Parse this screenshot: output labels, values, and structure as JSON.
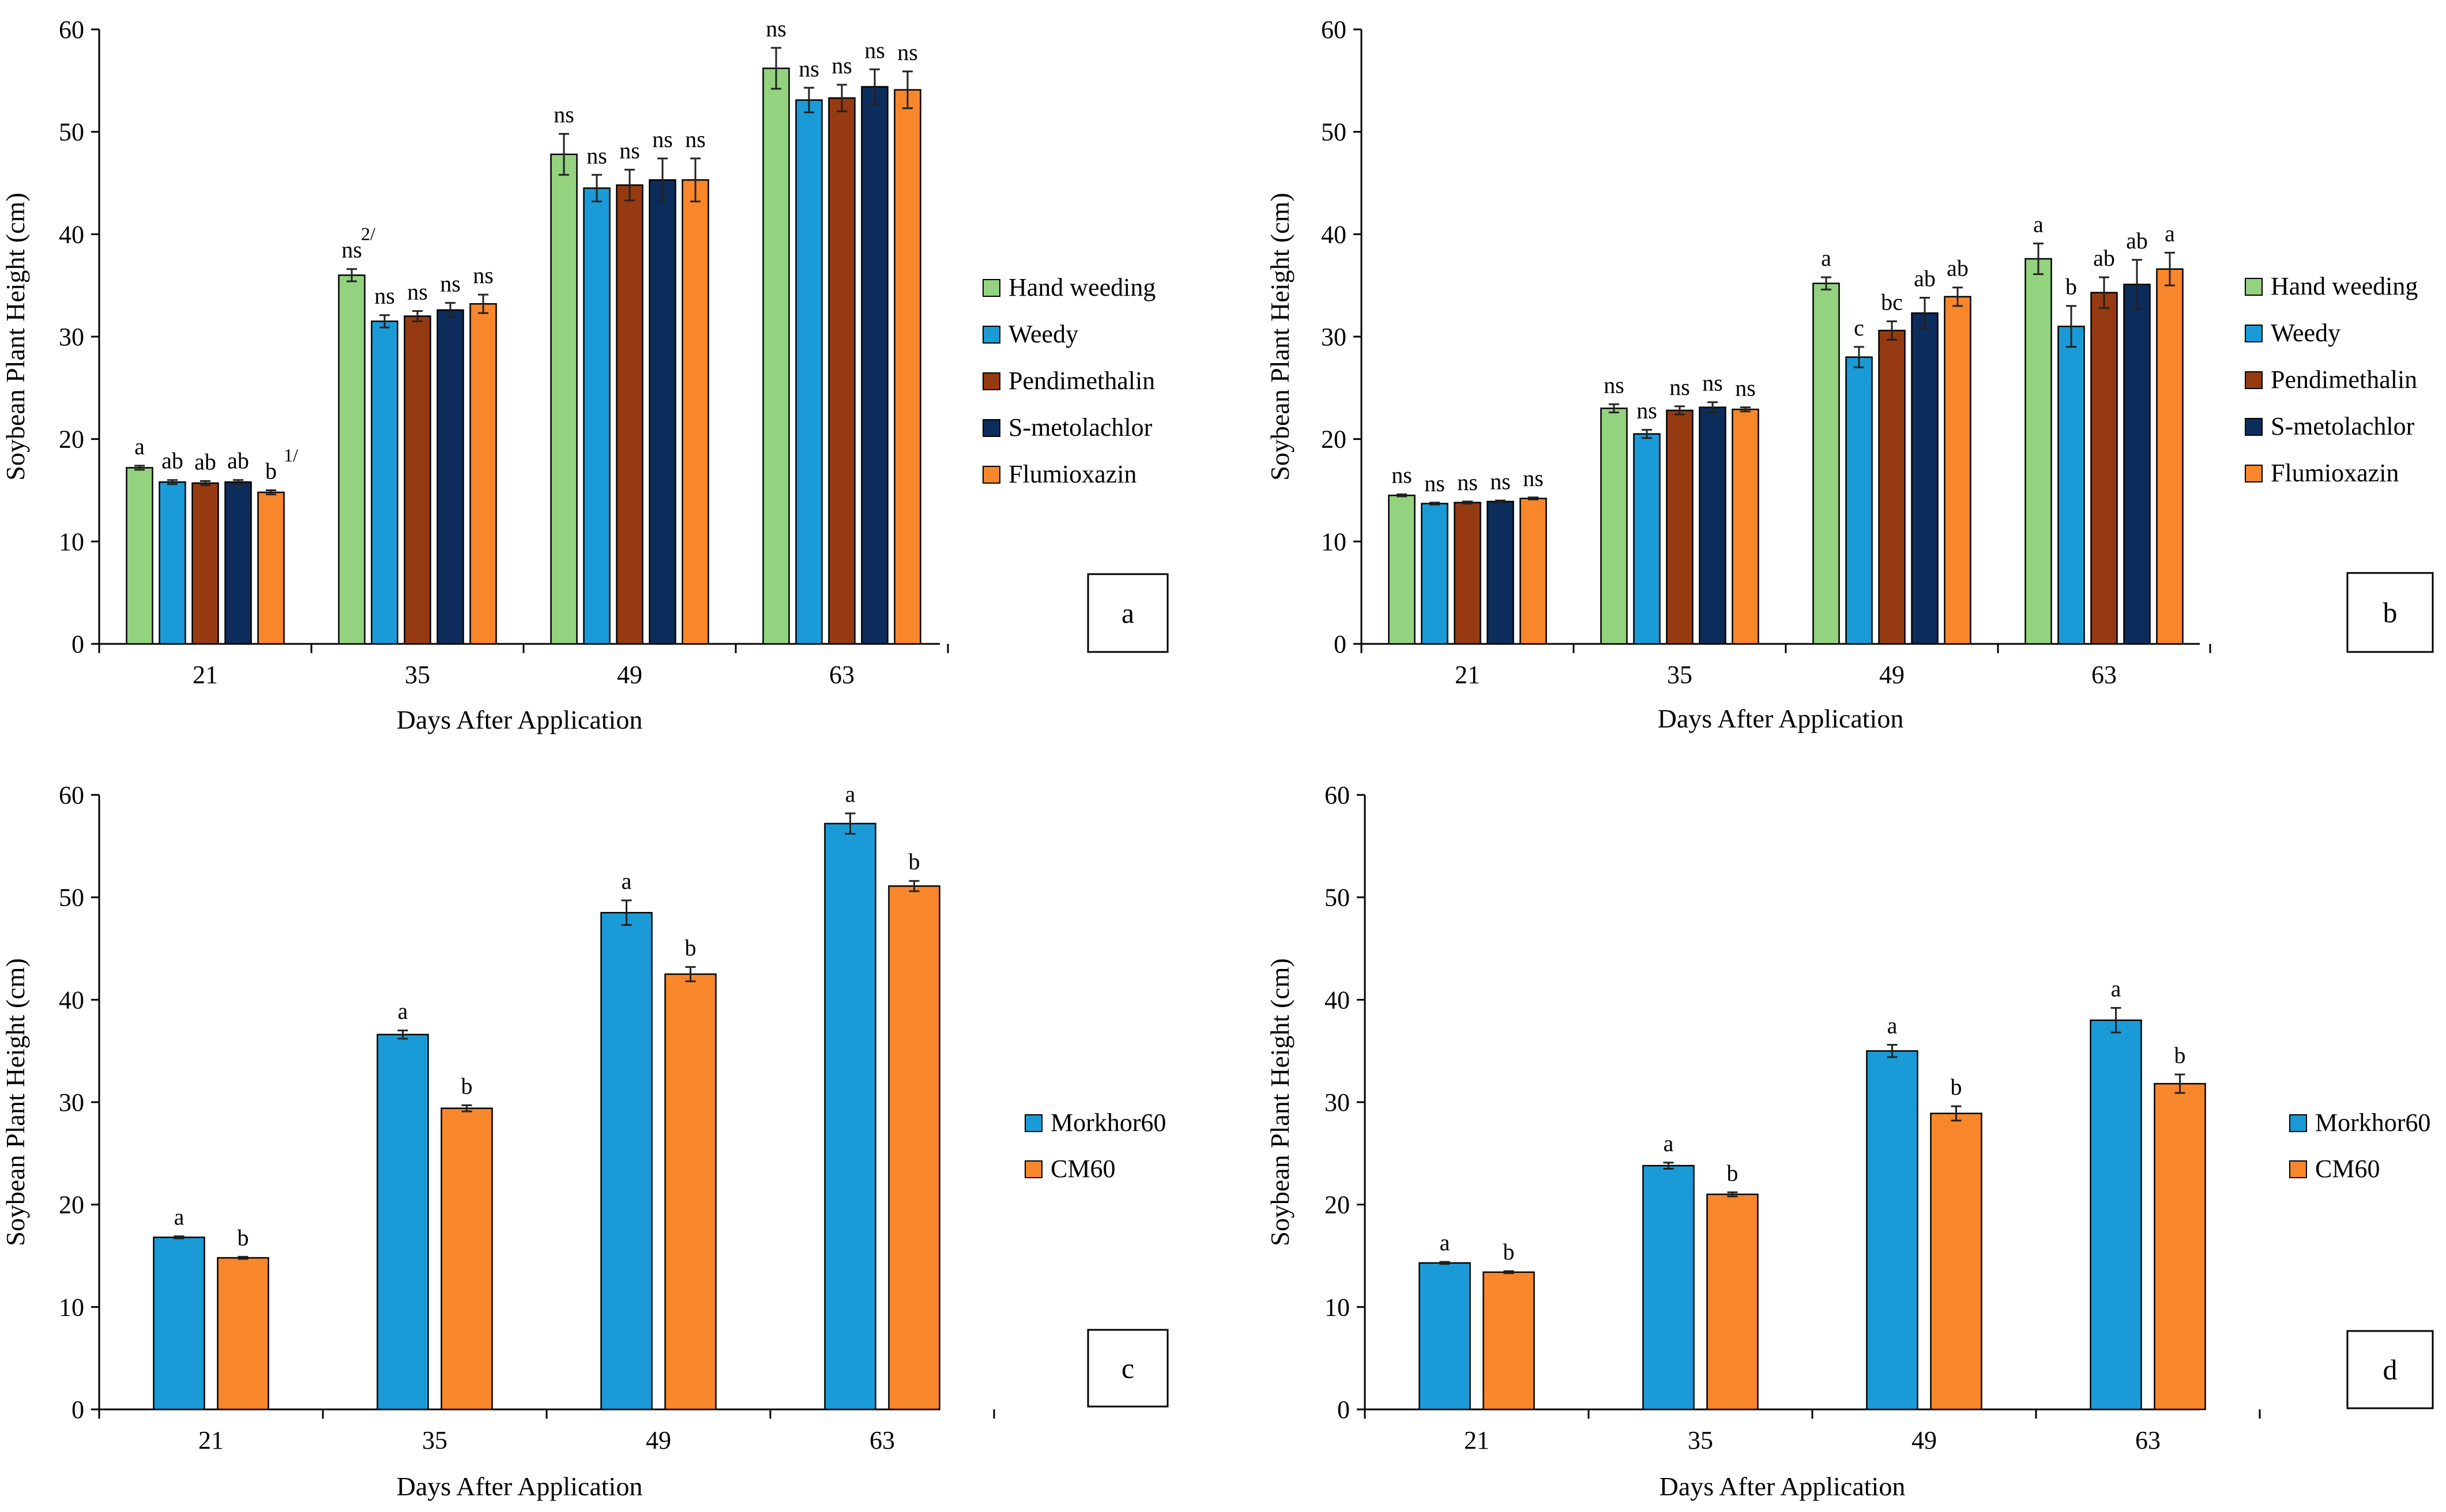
{
  "colors": {
    "Hand weeding": "#93d27f",
    "Weedy": "#1a9bd7",
    "Pendimethalin": "#953a11",
    "S-metolachlor": "#0c2d5c",
    "Flumioxazin": "#f8862b",
    "Morkhor60": "#1a9bd7",
    "CM60": "#f8862b"
  },
  "chart_data": [
    {
      "id": "a",
      "type": "bar",
      "panel_label": "a",
      "xlabel": "Days After Application",
      "ylabel": "Soybean Plant Height (cm)",
      "ylim": [
        0,
        60
      ],
      "yticks": [
        "0",
        "10",
        "20",
        "30",
        "40",
        "50",
        "60"
      ],
      "categories": [
        "21",
        "35",
        "49",
        "63"
      ],
      "legend": [
        "Hand weeding",
        "Weedy",
        "Pendimethalin",
        "S-metolachlor",
        "Flumioxazin"
      ],
      "series": [
        {
          "name": "Hand weeding",
          "values": [
            17.2,
            36.0,
            47.8,
            56.2
          ],
          "errors": [
            0.2,
            0.6,
            2.0,
            2.0
          ],
          "labels": [
            "a",
            "ns",
            "ns",
            "ns"
          ]
        },
        {
          "name": "Weedy",
          "values": [
            15.8,
            31.5,
            44.5,
            53.1
          ],
          "errors": [
            0.2,
            0.6,
            1.3,
            1.2
          ],
          "labels": [
            "ab",
            "ns",
            "ns",
            "ns"
          ]
        },
        {
          "name": "Pendimethalin",
          "values": [
            15.7,
            32.0,
            44.8,
            53.3
          ],
          "errors": [
            0.2,
            0.5,
            1.5,
            1.3
          ],
          "labels": [
            "ab",
            "ns",
            "ns",
            "ns"
          ]
        },
        {
          "name": "S-metolachlor",
          "values": [
            15.8,
            32.6,
            45.3,
            54.4
          ],
          "errors": [
            0.2,
            0.7,
            2.1,
            1.7
          ],
          "labels": [
            "ab",
            "ns",
            "ns",
            "ns"
          ]
        },
        {
          "name": "Flumioxazin",
          "values": [
            14.8,
            33.2,
            45.3,
            54.1
          ],
          "errors": [
            0.2,
            0.9,
            2.1,
            1.8
          ],
          "labels": [
            "b",
            "ns",
            "ns",
            "ns"
          ]
        }
      ],
      "footnotes": [
        {
          "text": "1/",
          "category": 0,
          "series": 4
        },
        {
          "text": "2/",
          "category": 1,
          "series": 0
        }
      ]
    },
    {
      "id": "b",
      "type": "bar",
      "panel_label": "b",
      "xlabel": "Days After Application",
      "ylabel": "Soybean Plant Height (cm)",
      "ylim": [
        0,
        60
      ],
      "yticks": [
        "0",
        "10",
        "20",
        "30",
        "40",
        "50",
        "60"
      ],
      "categories": [
        "21",
        "35",
        "49",
        "63"
      ],
      "legend": [
        "Hand weeding",
        "Weedy",
        "Pendimethalin",
        "S-metolachlor",
        "Flumioxazin"
      ],
      "series": [
        {
          "name": "Hand weeding",
          "values": [
            14.5,
            23.0,
            35.2,
            37.6
          ],
          "errors": [
            0.1,
            0.4,
            0.6,
            1.5
          ],
          "labels": [
            "ns",
            "ns",
            "a",
            "a"
          ]
        },
        {
          "name": "Weedy",
          "values": [
            13.7,
            20.5,
            28.0,
            31.0
          ],
          "errors": [
            0.1,
            0.4,
            1.0,
            2.0
          ],
          "labels": [
            "ns",
            "ns",
            "c",
            "b"
          ]
        },
        {
          "name": "Pendimethalin",
          "values": [
            13.8,
            22.8,
            30.6,
            34.3
          ],
          "errors": [
            0.1,
            0.4,
            0.9,
            1.5
          ],
          "labels": [
            "ns",
            "ns",
            "bc",
            "ab"
          ]
        },
        {
          "name": "S-metolachlor",
          "values": [
            13.9,
            23.1,
            32.3,
            35.1
          ],
          "errors": [
            0.1,
            0.5,
            1.5,
            2.4
          ],
          "labels": [
            "ns",
            "ns",
            "ab",
            "ab"
          ]
        },
        {
          "name": "Flumioxazin",
          "values": [
            14.2,
            22.9,
            33.9,
            36.6
          ],
          "errors": [
            0.1,
            0.2,
            0.9,
            1.6
          ],
          "labels": [
            "ns",
            "ns",
            "ab",
            "a"
          ]
        }
      ],
      "footnotes": []
    },
    {
      "id": "c",
      "type": "bar",
      "panel_label": "c",
      "xlabel": "Days After Application",
      "ylabel": "Soybean Plant Height (cm)",
      "ylim": [
        0,
        60
      ],
      "yticks": [
        "0",
        "10",
        "20",
        "30",
        "40",
        "50",
        "60"
      ],
      "categories": [
        "21",
        "35",
        "49",
        "63"
      ],
      "legend": [
        "Morkhor60",
        "CM60"
      ],
      "series": [
        {
          "name": "Morkhor60",
          "values": [
            16.8,
            36.6,
            48.5,
            57.2
          ],
          "errors": [
            0.1,
            0.4,
            1.2,
            1.0
          ],
          "labels": [
            "a",
            "a",
            "a",
            "a"
          ]
        },
        {
          "name": "CM60",
          "values": [
            14.8,
            29.4,
            42.5,
            51.1
          ],
          "errors": [
            0.1,
            0.3,
            0.7,
            0.5
          ],
          "labels": [
            "b",
            "b",
            "b",
            "b"
          ]
        }
      ],
      "footnotes": []
    },
    {
      "id": "d",
      "type": "bar",
      "panel_label": "d",
      "xlabel": "Days After Application",
      "ylabel": "Soybean Plant Height (cm)",
      "ylim": [
        0,
        60
      ],
      "yticks": [
        "0",
        "10",
        "20",
        "30",
        "40",
        "50",
        "60"
      ],
      "categories": [
        "21",
        "35",
        "49",
        "63"
      ],
      "legend": [
        "Morkhor60",
        "CM60"
      ],
      "series": [
        {
          "name": "Morkhor60",
          "values": [
            14.3,
            23.8,
            35.0,
            38.0
          ],
          "errors": [
            0.1,
            0.3,
            0.6,
            1.2
          ],
          "labels": [
            "a",
            "a",
            "a",
            "a"
          ]
        },
        {
          "name": "CM60",
          "values": [
            13.4,
            21.0,
            28.9,
            31.8
          ],
          "errors": [
            0.1,
            0.2,
            0.7,
            0.9
          ],
          "labels": [
            "b",
            "b",
            "b",
            "b"
          ]
        }
      ],
      "footnotes": []
    }
  ]
}
